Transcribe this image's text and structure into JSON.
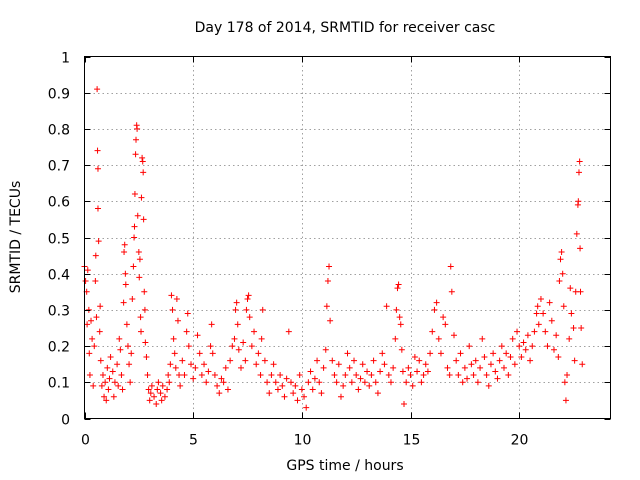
{
  "chart_data": {
    "type": "scatter",
    "title": "Day 178 of 2014, SRMTID for receiver casc",
    "xlabel": "GPS time / hours",
    "ylabel": "SRMTID / TECUs",
    "xlim": [
      0,
      24.2
    ],
    "ylim": [
      0,
      1
    ],
    "xticks": [
      0,
      5,
      10,
      15,
      20
    ],
    "xtick_labels": [
      "0",
      "5",
      "10",
      "15",
      "20"
    ],
    "yticks": [
      0,
      0.1,
      0.2,
      0.3,
      0.4,
      0.5,
      0.6,
      0.7,
      0.8,
      0.9,
      1
    ],
    "ytick_labels": [
      "0",
      "0.1",
      "0.2",
      "0.3",
      "0.4",
      "0.5",
      "0.6",
      "0.7",
      "0.8",
      "0.9",
      "1"
    ],
    "grid": true,
    "marker": "+",
    "marker_color": "#ff0000",
    "series": [
      {
        "name": "SRMTID",
        "points": [
          [
            0.0,
            0.42
          ],
          [
            0.05,
            0.38
          ],
          [
            0.1,
            0.35
          ],
          [
            0.12,
            0.26
          ],
          [
            0.15,
            0.41
          ],
          [
            0.2,
            0.3
          ],
          [
            0.22,
            0.18
          ],
          [
            0.25,
            0.12
          ],
          [
            0.3,
            0.27
          ],
          [
            0.35,
            0.22
          ],
          [
            0.4,
            0.09
          ],
          [
            0.45,
            0.2
          ],
          [
            0.5,
            0.38
          ],
          [
            0.52,
            0.45
          ],
          [
            0.55,
            0.28
          ],
          [
            0.58,
            0.91
          ],
          [
            0.6,
            0.74
          ],
          [
            0.62,
            0.69
          ],
          [
            0.62,
            0.58
          ],
          [
            0.65,
            0.49
          ],
          [
            0.7,
            0.24
          ],
          [
            0.72,
            0.31
          ],
          [
            0.75,
            0.16
          ],
          [
            0.8,
            0.09
          ],
          [
            0.85,
            0.12
          ],
          [
            0.9,
            0.06
          ],
          [
            0.95,
            0.1
          ],
          [
            1.0,
            0.05
          ],
          [
            1.05,
            0.14
          ],
          [
            1.1,
            0.08
          ],
          [
            1.15,
            0.11
          ],
          [
            1.2,
            0.17
          ],
          [
            1.3,
            0.13
          ],
          [
            1.35,
            0.06
          ],
          [
            1.4,
            0.1
          ],
          [
            1.5,
            0.15
          ],
          [
            1.55,
            0.09
          ],
          [
            1.6,
            0.22
          ],
          [
            1.65,
            0.19
          ],
          [
            1.7,
            0.12
          ],
          [
            1.75,
            0.08
          ],
          [
            1.8,
            0.32
          ],
          [
            1.82,
            0.46
          ],
          [
            1.85,
            0.48
          ],
          [
            1.88,
            0.4
          ],
          [
            1.9,
            0.37
          ],
          [
            1.95,
            0.26
          ],
          [
            2.0,
            0.2
          ],
          [
            2.05,
            0.15
          ],
          [
            2.1,
            0.1
          ],
          [
            2.15,
            0.18
          ],
          [
            2.2,
            0.33
          ],
          [
            2.25,
            0.42
          ],
          [
            2.28,
            0.5
          ],
          [
            2.3,
            0.53
          ],
          [
            2.32,
            0.62
          ],
          [
            2.35,
            0.73
          ],
          [
            2.37,
            0.77
          ],
          [
            2.4,
            0.81
          ],
          [
            2.42,
            0.8
          ],
          [
            2.45,
            0.56
          ],
          [
            2.5,
            0.46
          ],
          [
            2.52,
            0.39
          ],
          [
            2.55,
            0.44
          ],
          [
            2.58,
            0.28
          ],
          [
            2.6,
            0.24
          ],
          [
            2.62,
            0.61
          ],
          [
            2.65,
            0.72
          ],
          [
            2.68,
            0.71
          ],
          [
            2.7,
            0.68
          ],
          [
            2.72,
            0.55
          ],
          [
            2.75,
            0.35
          ],
          [
            2.78,
            0.3
          ],
          [
            2.8,
            0.21
          ],
          [
            2.85,
            0.17
          ],
          [
            2.9,
            0.12
          ],
          [
            2.95,
            0.08
          ],
          [
            3.0,
            0.05
          ],
          [
            3.05,
            0.07
          ],
          [
            3.1,
            0.09
          ],
          [
            3.2,
            0.06
          ],
          [
            3.3,
            0.04
          ],
          [
            3.35,
            0.08
          ],
          [
            3.4,
            0.1
          ],
          [
            3.5,
            0.07
          ],
          [
            3.55,
            0.05
          ],
          [
            3.6,
            0.09
          ],
          [
            3.7,
            0.06
          ],
          [
            3.8,
            0.08
          ],
          [
            3.85,
            0.12
          ],
          [
            3.9,
            0.1
          ],
          [
            3.95,
            0.15
          ],
          [
            4.0,
            0.34
          ],
          [
            4.05,
            0.3
          ],
          [
            4.1,
            0.22
          ],
          [
            4.15,
            0.18
          ],
          [
            4.2,
            0.14
          ],
          [
            4.25,
            0.33
          ],
          [
            4.3,
            0.27
          ],
          [
            4.35,
            0.12
          ],
          [
            4.4,
            0.09
          ],
          [
            4.5,
            0.16
          ],
          [
            4.6,
            0.12
          ],
          [
            4.7,
            0.24
          ],
          [
            4.75,
            0.29
          ],
          [
            4.8,
            0.2
          ],
          [
            4.9,
            0.15
          ],
          [
            5.0,
            0.11
          ],
          [
            5.1,
            0.14
          ],
          [
            5.2,
            0.23
          ],
          [
            5.3,
            0.18
          ],
          [
            5.4,
            0.12
          ],
          [
            5.5,
            0.15
          ],
          [
            5.6,
            0.1
          ],
          [
            5.7,
            0.13
          ],
          [
            5.8,
            0.2
          ],
          [
            5.85,
            0.26
          ],
          [
            5.9,
            0.18
          ],
          [
            6.0,
            0.12
          ],
          [
            6.1,
            0.09
          ],
          [
            6.2,
            0.07
          ],
          [
            6.3,
            0.11
          ],
          [
            6.4,
            0.1
          ],
          [
            6.5,
            0.14
          ],
          [
            6.6,
            0.08
          ],
          [
            6.7,
            0.16
          ],
          [
            6.8,
            0.2
          ],
          [
            6.9,
            0.22
          ],
          [
            6.95,
            0.3
          ],
          [
            7.0,
            0.32
          ],
          [
            7.05,
            0.26
          ],
          [
            7.1,
            0.19
          ],
          [
            7.2,
            0.14
          ],
          [
            7.3,
            0.21
          ],
          [
            7.4,
            0.16
          ],
          [
            7.45,
            0.3
          ],
          [
            7.5,
            0.33
          ],
          [
            7.55,
            0.34
          ],
          [
            7.6,
            0.28
          ],
          [
            7.7,
            0.2
          ],
          [
            7.8,
            0.24
          ],
          [
            7.9,
            0.15
          ],
          [
            8.0,
            0.18
          ],
          [
            8.1,
            0.12
          ],
          [
            8.15,
            0.22
          ],
          [
            8.2,
            0.3
          ],
          [
            8.3,
            0.16
          ],
          [
            8.4,
            0.1
          ],
          [
            8.5,
            0.07
          ],
          [
            8.6,
            0.12
          ],
          [
            8.7,
            0.15
          ],
          [
            8.8,
            0.1
          ],
          [
            8.9,
            0.08
          ],
          [
            9.0,
            0.12
          ],
          [
            9.1,
            0.09
          ],
          [
            9.2,
            0.06
          ],
          [
            9.3,
            0.11
          ],
          [
            9.4,
            0.24
          ],
          [
            9.5,
            0.1
          ],
          [
            9.6,
            0.07
          ],
          [
            9.7,
            0.09
          ],
          [
            9.8,
            0.05
          ],
          [
            9.9,
            0.12
          ],
          [
            10.0,
            0.08
          ],
          [
            10.1,
            0.06
          ],
          [
            10.2,
            0.03
          ],
          [
            10.3,
            0.1
          ],
          [
            10.4,
            0.13
          ],
          [
            10.5,
            0.08
          ],
          [
            10.6,
            0.11
          ],
          [
            10.7,
            0.16
          ],
          [
            10.8,
            0.1
          ],
          [
            10.9,
            0.07
          ],
          [
            11.0,
            0.14
          ],
          [
            11.1,
            0.19
          ],
          [
            11.15,
            0.31
          ],
          [
            11.2,
            0.38
          ],
          [
            11.25,
            0.42
          ],
          [
            11.3,
            0.27
          ],
          [
            11.4,
            0.16
          ],
          [
            11.5,
            0.12
          ],
          [
            11.6,
            0.1
          ],
          [
            11.7,
            0.15
          ],
          [
            11.8,
            0.06
          ],
          [
            11.9,
            0.09
          ],
          [
            12.0,
            0.12
          ],
          [
            12.1,
            0.18
          ],
          [
            12.2,
            0.14
          ],
          [
            12.3,
            0.1
          ],
          [
            12.4,
            0.16
          ],
          [
            12.5,
            0.12
          ],
          [
            12.6,
            0.08
          ],
          [
            12.7,
            0.11
          ],
          [
            12.8,
            0.15
          ],
          [
            12.9,
            0.1
          ],
          [
            13.0,
            0.13
          ],
          [
            13.1,
            0.09
          ],
          [
            13.2,
            0.12
          ],
          [
            13.3,
            0.16
          ],
          [
            13.4,
            0.1
          ],
          [
            13.5,
            0.07
          ],
          [
            13.6,
            0.13
          ],
          [
            13.7,
            0.18
          ],
          [
            13.8,
            0.15
          ],
          [
            13.9,
            0.31
          ],
          [
            14.0,
            0.12
          ],
          [
            14.1,
            0.1
          ],
          [
            14.2,
            0.14
          ],
          [
            14.3,
            0.22
          ],
          [
            14.35,
            0.3
          ],
          [
            14.4,
            0.36
          ],
          [
            14.45,
            0.37
          ],
          [
            14.5,
            0.28
          ],
          [
            14.55,
            0.26
          ],
          [
            14.6,
            0.19
          ],
          [
            14.65,
            0.13
          ],
          [
            14.7,
            0.04
          ],
          [
            14.8,
            0.1
          ],
          [
            14.9,
            0.14
          ],
          [
            15.0,
            0.12
          ],
          [
            15.1,
            0.09
          ],
          [
            15.2,
            0.17
          ],
          [
            15.3,
            0.13
          ],
          [
            15.4,
            0.16
          ],
          [
            15.5,
            0.1
          ],
          [
            15.6,
            0.12
          ],
          [
            15.7,
            0.15
          ],
          [
            15.8,
            0.13
          ],
          [
            15.9,
            0.18
          ],
          [
            16.0,
            0.24
          ],
          [
            16.1,
            0.3
          ],
          [
            16.2,
            0.32
          ],
          [
            16.3,
            0.22
          ],
          [
            16.4,
            0.18
          ],
          [
            16.5,
            0.28
          ],
          [
            16.6,
            0.26
          ],
          [
            16.7,
            0.14
          ],
          [
            16.8,
            0.12
          ],
          [
            16.85,
            0.42
          ],
          [
            16.9,
            0.35
          ],
          [
            17.0,
            0.23
          ],
          [
            17.1,
            0.16
          ],
          [
            17.2,
            0.12
          ],
          [
            17.3,
            0.18
          ],
          [
            17.4,
            0.1
          ],
          [
            17.5,
            0.14
          ],
          [
            17.6,
            0.11
          ],
          [
            17.7,
            0.2
          ],
          [
            17.8,
            0.15
          ],
          [
            17.9,
            0.12
          ],
          [
            18.0,
            0.16
          ],
          [
            18.1,
            0.1
          ],
          [
            18.2,
            0.14
          ],
          [
            18.3,
            0.22
          ],
          [
            18.4,
            0.17
          ],
          [
            18.5,
            0.12
          ],
          [
            18.6,
            0.09
          ],
          [
            18.7,
            0.15
          ],
          [
            18.8,
            0.18
          ],
          [
            18.9,
            0.13
          ],
          [
            19.0,
            0.11
          ],
          [
            19.1,
            0.16
          ],
          [
            19.2,
            0.2
          ],
          [
            19.3,
            0.14
          ],
          [
            19.4,
            0.18
          ],
          [
            19.5,
            0.12
          ],
          [
            19.6,
            0.17
          ],
          [
            19.7,
            0.22
          ],
          [
            19.8,
            0.15
          ],
          [
            19.9,
            0.24
          ],
          [
            20.0,
            0.2
          ],
          [
            20.1,
            0.17
          ],
          [
            20.2,
            0.21
          ],
          [
            20.3,
            0.19
          ],
          [
            20.4,
            0.23
          ],
          [
            20.5,
            0.16
          ],
          [
            20.6,
            0.2
          ],
          [
            20.7,
            0.24
          ],
          [
            20.8,
            0.29
          ],
          [
            20.85,
            0.31
          ],
          [
            20.9,
            0.26
          ],
          [
            21.0,
            0.33
          ],
          [
            21.1,
            0.29
          ],
          [
            21.2,
            0.24
          ],
          [
            21.3,
            0.2
          ],
          [
            21.4,
            0.32
          ],
          [
            21.5,
            0.27
          ],
          [
            21.6,
            0.19
          ],
          [
            21.7,
            0.23
          ],
          [
            21.8,
            0.17
          ],
          [
            21.85,
            0.38
          ],
          [
            21.9,
            0.44
          ],
          [
            21.95,
            0.46
          ],
          [
            22.0,
            0.4
          ],
          [
            22.05,
            0.31
          ],
          [
            22.1,
            0.1
          ],
          [
            22.15,
            0.05
          ],
          [
            22.2,
            0.12
          ],
          [
            22.3,
            0.22
          ],
          [
            22.35,
            0.36
          ],
          [
            22.4,
            0.29
          ],
          [
            22.5,
            0.25
          ],
          [
            22.55,
            0.16
          ],
          [
            22.6,
            0.35
          ],
          [
            22.65,
            0.51
          ],
          [
            22.7,
            0.59
          ],
          [
            22.72,
            0.6
          ],
          [
            22.75,
            0.68
          ],
          [
            22.78,
            0.71
          ],
          [
            22.8,
            0.47
          ],
          [
            22.82,
            0.35
          ],
          [
            22.85,
            0.25
          ],
          [
            22.9,
            0.15
          ]
        ]
      }
    ]
  }
}
